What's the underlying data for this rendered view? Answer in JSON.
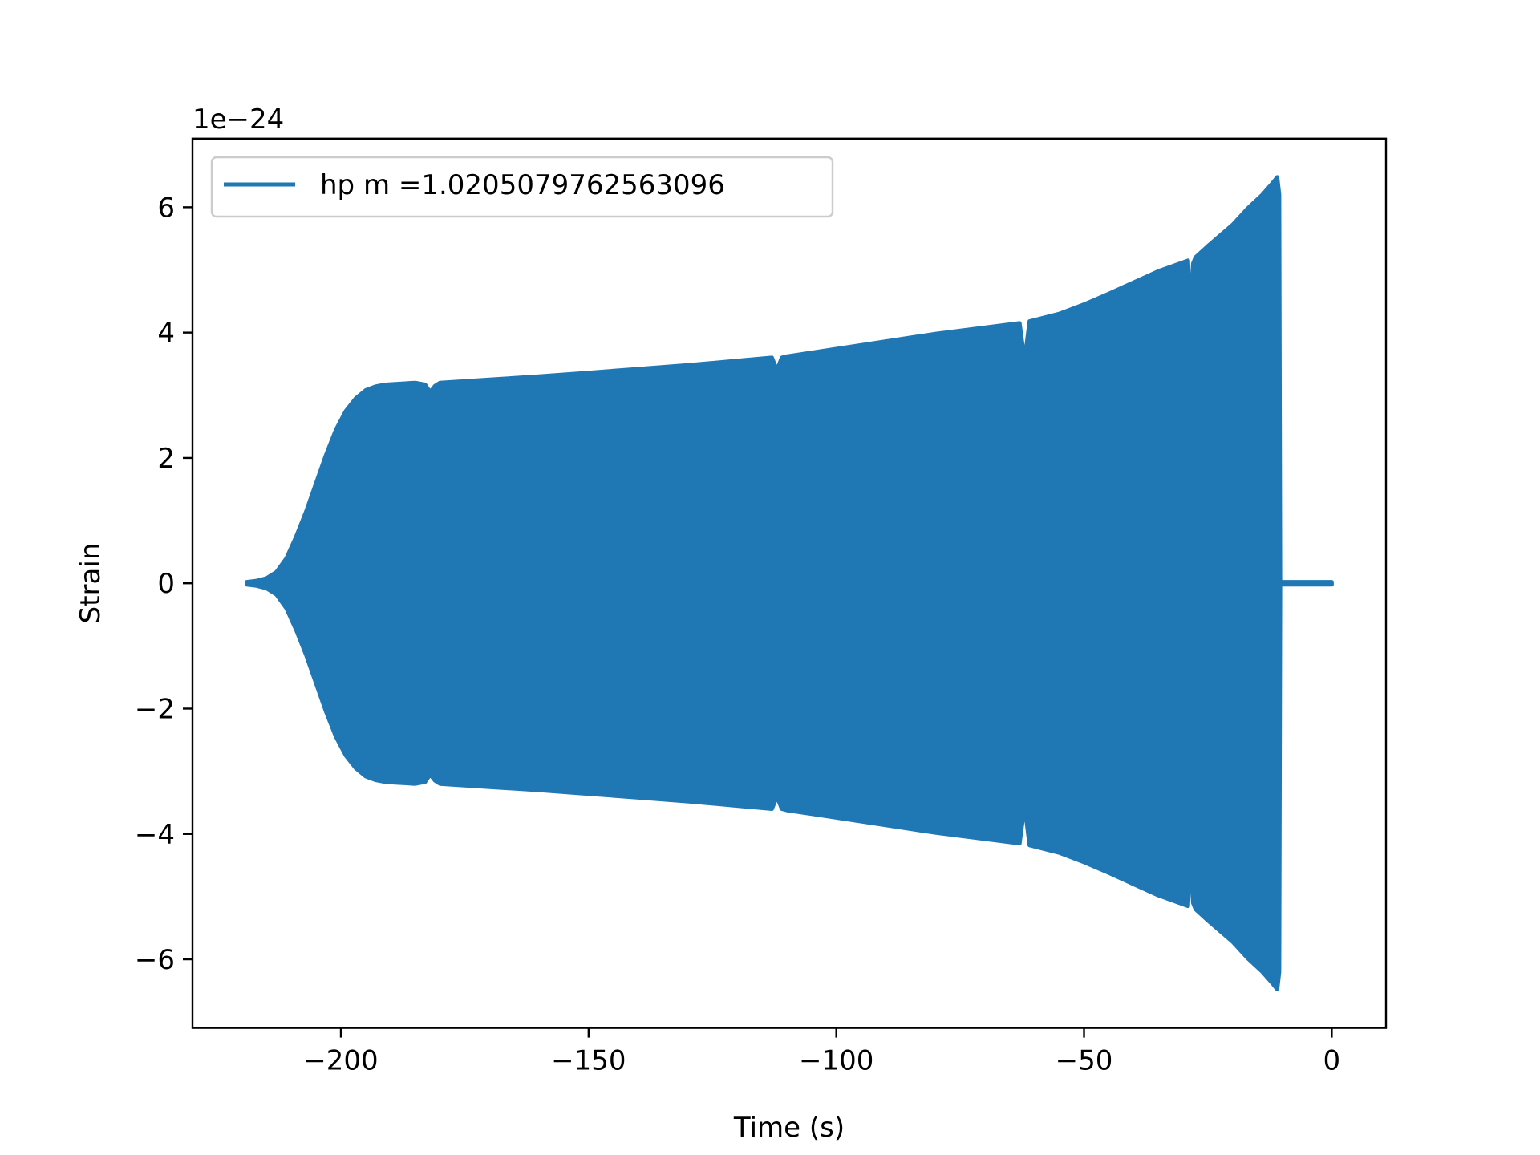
{
  "chart_data": {
    "type": "line",
    "title": "",
    "xlabel": "Time (s)",
    "ylabel": "Strain",
    "y_offset_label": "1e−24",
    "xlim": [
      -229.95,
      10.95
    ],
    "ylim": [
      -7.095,
      7.095
    ],
    "xticks": [
      -200,
      -150,
      -100,
      -50,
      0
    ],
    "xtick_labels": [
      "−200",
      "−150",
      "−100",
      "−50",
      "0"
    ],
    "yticks": [
      -6,
      -4,
      -2,
      0,
      2,
      4,
      6
    ],
    "ytick_labels": [
      "−6",
      "−4",
      "−2",
      "0",
      "2",
      "4",
      "6"
    ],
    "grid": false,
    "legend_placement": "upper-left",
    "series": [
      {
        "name": "hp m =1.0205079762563096",
        "color": "#1f77b4",
        "note_envelope": "oscillating signal; amplitude envelope in units of 1e-24",
        "envelope": {
          "t": [
            -219,
            -217,
            -215,
            -213,
            -211,
            -209,
            -207,
            -205,
            -203,
            -201,
            -199,
            -197,
            -195,
            -193,
            -191,
            -189,
            -185,
            -183,
            -182,
            -181,
            -180,
            -170,
            -160,
            -150,
            -140,
            -130,
            -120,
            -113,
            -112,
            -111,
            -110,
            -100,
            -90,
            -80,
            -70,
            -63,
            -62,
            -61,
            -55,
            -50,
            -45,
            -40,
            -35,
            -29,
            -28.5,
            -28,
            -27.5,
            -25,
            -20,
            -17,
            -14,
            -12,
            -11,
            -10.6,
            -10.4,
            -9,
            -5,
            0
          ],
          "amplitude": [
            0.02,
            0.04,
            0.08,
            0.18,
            0.4,
            0.75,
            1.15,
            1.6,
            2.05,
            2.45,
            2.75,
            2.95,
            3.08,
            3.14,
            3.17,
            3.18,
            3.2,
            3.17,
            3.05,
            3.15,
            3.2,
            3.25,
            3.3,
            3.36,
            3.42,
            3.48,
            3.55,
            3.6,
            3.4,
            3.6,
            3.62,
            3.74,
            3.86,
            3.98,
            4.08,
            4.15,
            3.55,
            4.18,
            4.3,
            4.45,
            4.62,
            4.8,
            4.98,
            5.15,
            4.2,
            5.1,
            5.2,
            5.38,
            5.72,
            5.98,
            6.2,
            6.38,
            6.48,
            6.2,
            0.02,
            0.02,
            0.02,
            0.02
          ]
        }
      }
    ]
  }
}
